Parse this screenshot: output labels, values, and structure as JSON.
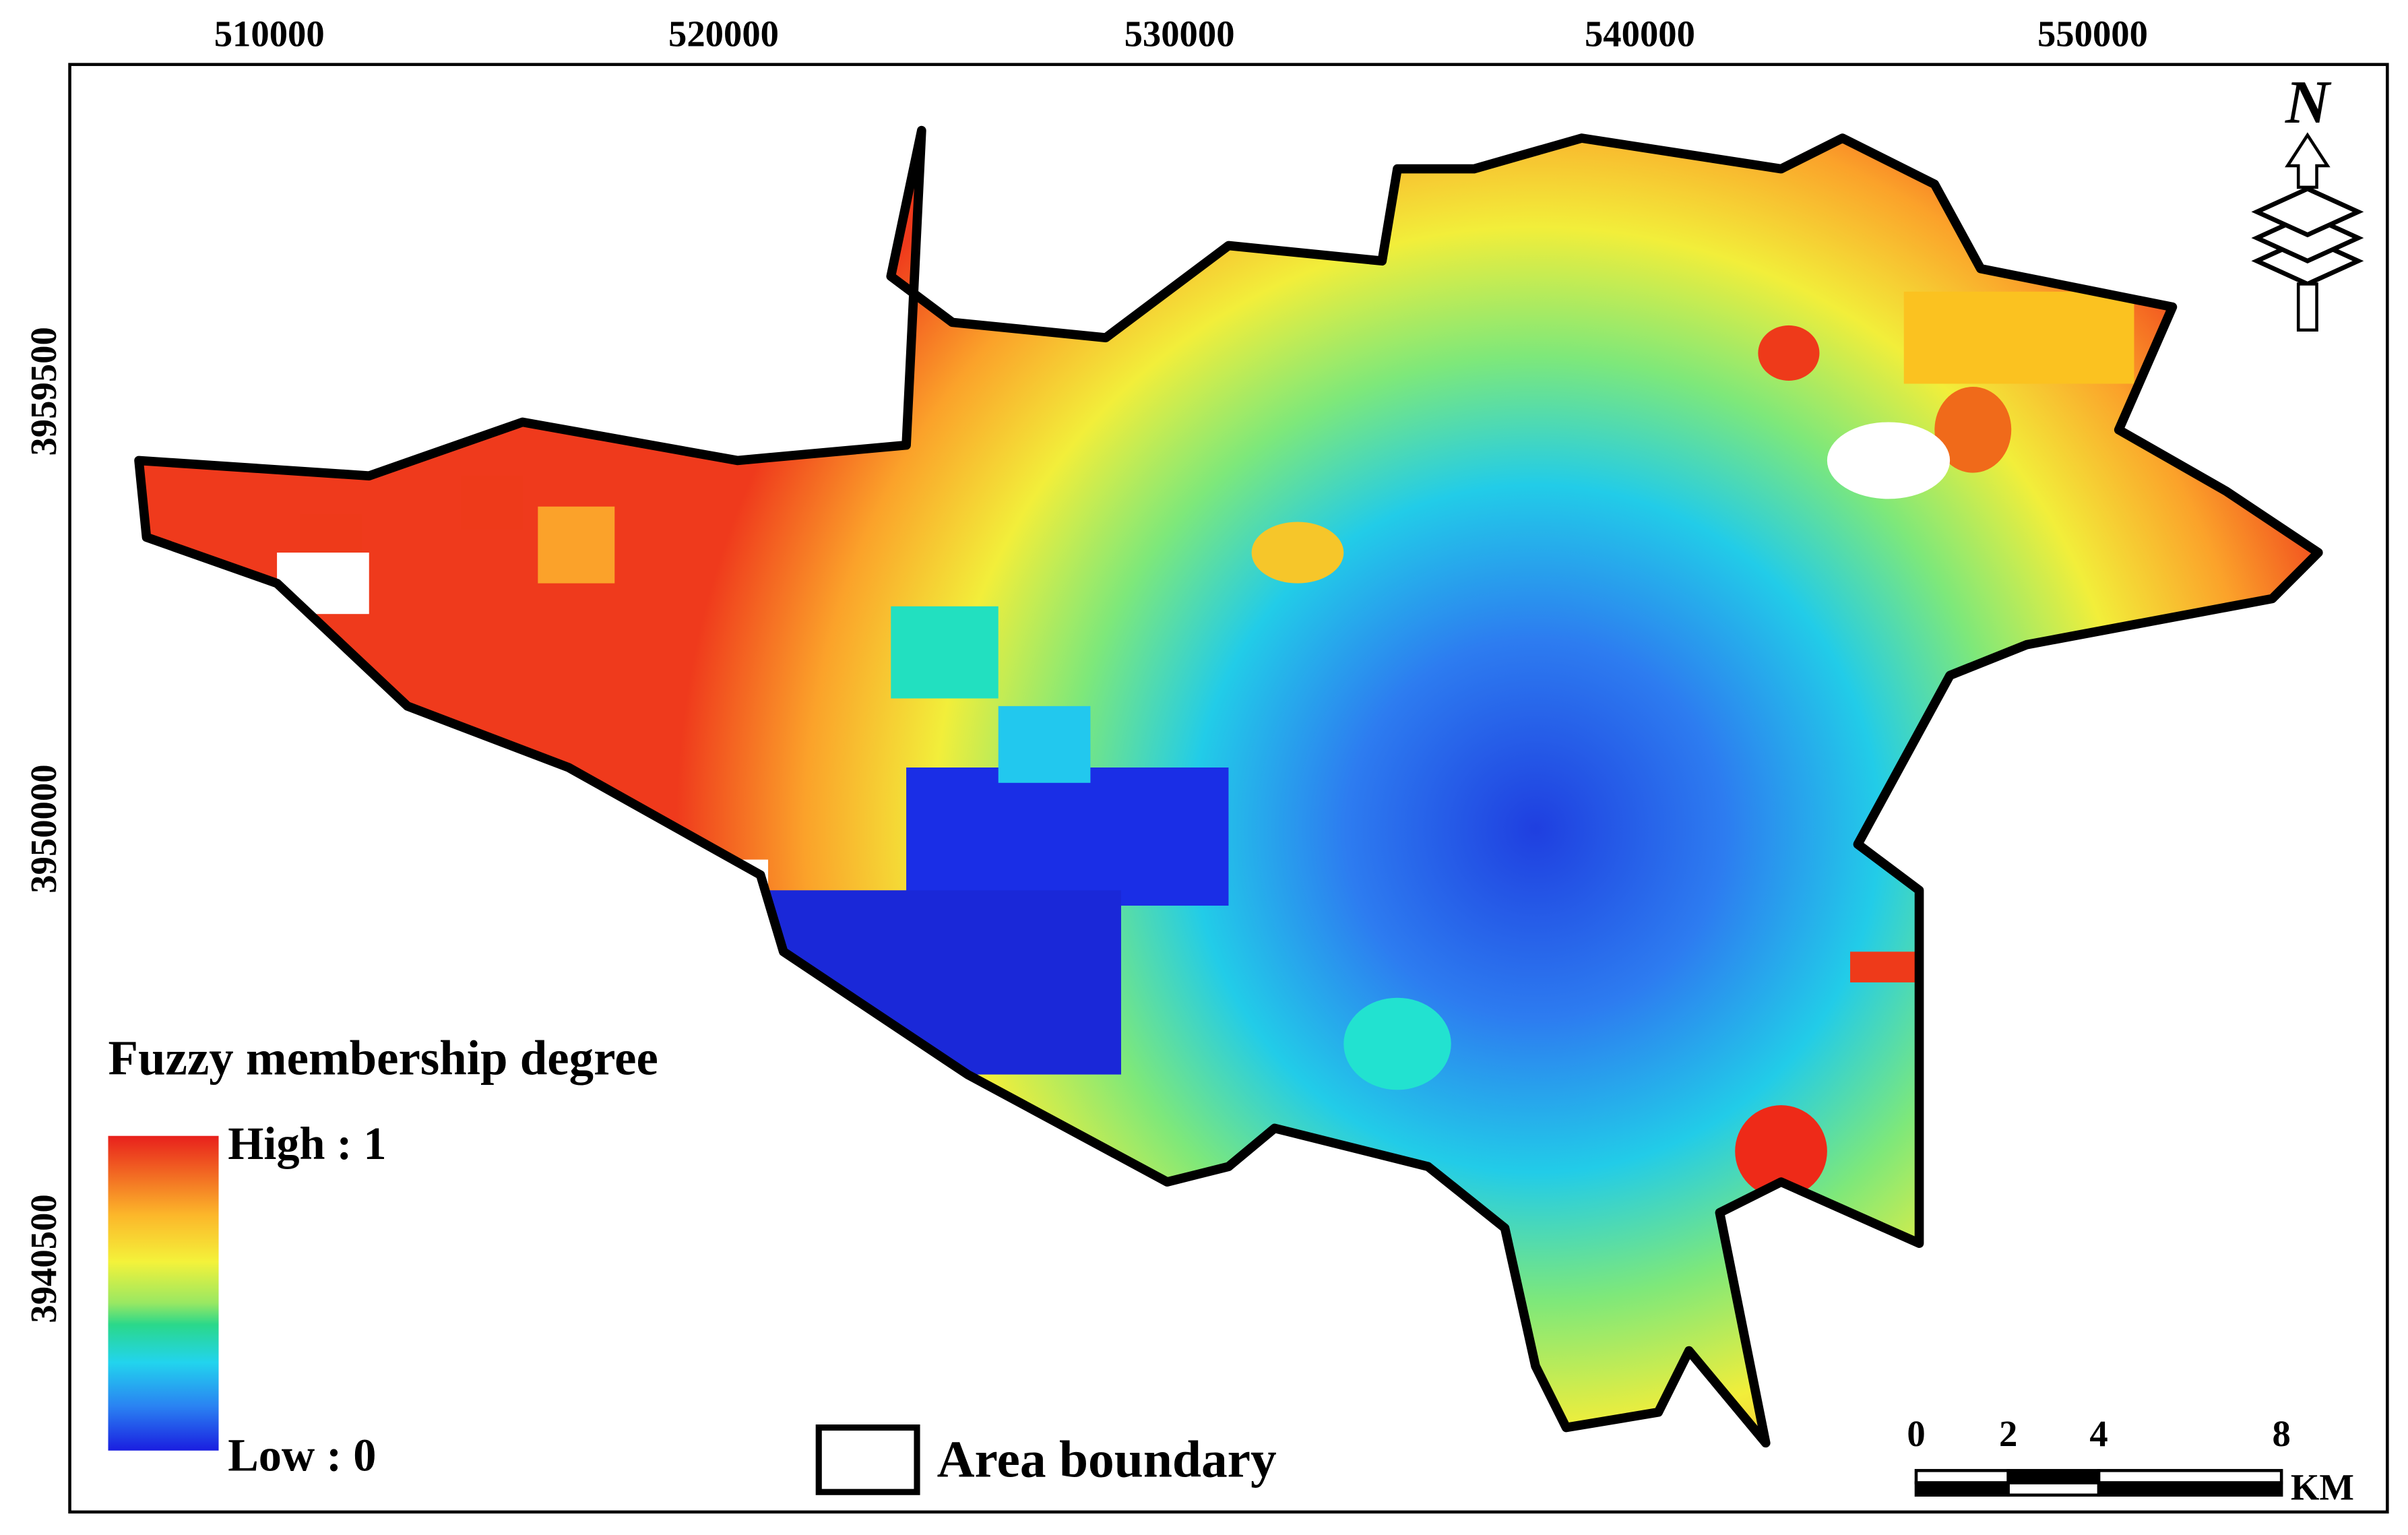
{
  "map": {
    "x_ticks": [
      "510000",
      "520000",
      "530000",
      "540000",
      "550000"
    ],
    "y_ticks": [
      "3959500",
      "3950000",
      "3940500"
    ],
    "legend": {
      "title": "Fuzzy membership degree",
      "high": "High : 1",
      "low": "Low : 0"
    },
    "boundary_label": "Area boundary",
    "scale_bar": {
      "labels": [
        "0",
        "2",
        "4",
        "8"
      ],
      "unit": "KM"
    },
    "north": "N"
  }
}
